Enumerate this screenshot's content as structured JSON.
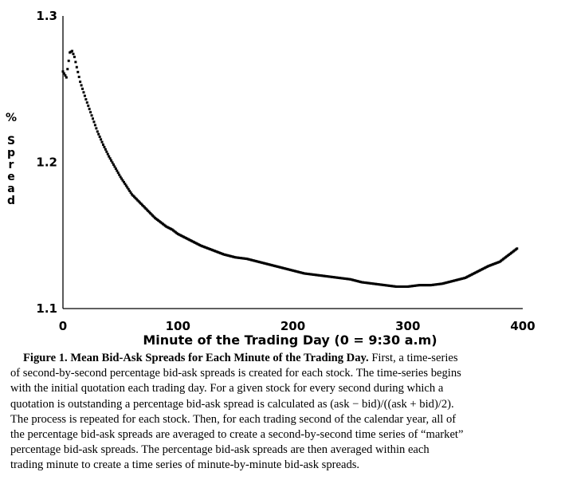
{
  "chart_data": {
    "type": "scatter",
    "title": "",
    "xlabel": "Minute of the Trading Day (0 = 9:30 a.m)",
    "ylabel": "% Spread",
    "xlim": [
      0,
      400
    ],
    "ylim": [
      1.1,
      1.3
    ],
    "x_ticks": [
      "0",
      "100",
      "200",
      "300",
      "400"
    ],
    "y_ticks": [
      "1.1",
      "1.2",
      "1.3"
    ],
    "grid": false,
    "series": [
      {
        "name": "Mean bid-ask spread",
        "points": [
          [
            0,
            1.262
          ],
          [
            3,
            1.258
          ],
          [
            6,
            1.275
          ],
          [
            8,
            1.276
          ],
          [
            10,
            1.272
          ],
          [
            12,
            1.265
          ],
          [
            15,
            1.255
          ],
          [
            20,
            1.243
          ],
          [
            25,
            1.232
          ],
          [
            30,
            1.221
          ],
          [
            35,
            1.212
          ],
          [
            40,
            1.204
          ],
          [
            45,
            1.197
          ],
          [
            50,
            1.19
          ],
          [
            55,
            1.184
          ],
          [
            60,
            1.178
          ],
          [
            65,
            1.174
          ],
          [
            70,
            1.17
          ],
          [
            75,
            1.166
          ],
          [
            80,
            1.162
          ],
          [
            85,
            1.159
          ],
          [
            90,
            1.156
          ],
          [
            95,
            1.154
          ],
          [
            100,
            1.151
          ],
          [
            110,
            1.147
          ],
          [
            120,
            1.143
          ],
          [
            130,
            1.14
          ],
          [
            140,
            1.137
          ],
          [
            150,
            1.135
          ],
          [
            160,
            1.134
          ],
          [
            170,
            1.132
          ],
          [
            180,
            1.13
          ],
          [
            190,
            1.128
          ],
          [
            200,
            1.126
          ],
          [
            210,
            1.124
          ],
          [
            220,
            1.123
          ],
          [
            230,
            1.122
          ],
          [
            240,
            1.121
          ],
          [
            250,
            1.12
          ],
          [
            260,
            1.118
          ],
          [
            270,
            1.117
          ],
          [
            280,
            1.116
          ],
          [
            290,
            1.115
          ],
          [
            300,
            1.115
          ],
          [
            310,
            1.116
          ],
          [
            320,
            1.116
          ],
          [
            330,
            1.117
          ],
          [
            340,
            1.119
          ],
          [
            350,
            1.121
          ],
          [
            360,
            1.125
          ],
          [
            370,
            1.129
          ],
          [
            380,
            1.132
          ],
          [
            390,
            1.138
          ],
          [
            395,
            1.141
          ]
        ]
      }
    ]
  },
  "caption": {
    "lines": [
      "Figure 1. Mean Bid-Ask Spreads for Each Minute of the Trading Day. First, a time-series",
      "of second-by-second percentage bid-ask spreads is created for each stock. The time-series begins",
      "with the initial quotation each trading day. For a given stock for every second during which a",
      "quotation is outstanding a percentage bid-ask spread is calculated as (ask − bid)/((ask + bid)/2).",
      "The process is repeated for each stock. Then, for each trading second of the calendar year, all of",
      "the percentage bid-ask spreads are averaged to create a second-by-second time series of “market”",
      "percentage bid-ask spreads. The percentage bid-ask spreads are then averaged within each",
      "trading minute to create a time series of minute-by-minute bid-ask spreads."
    ],
    "bold_lead": "Figure 1. Mean Bid-Ask Spreads for Each Minute of the Trading Day."
  }
}
